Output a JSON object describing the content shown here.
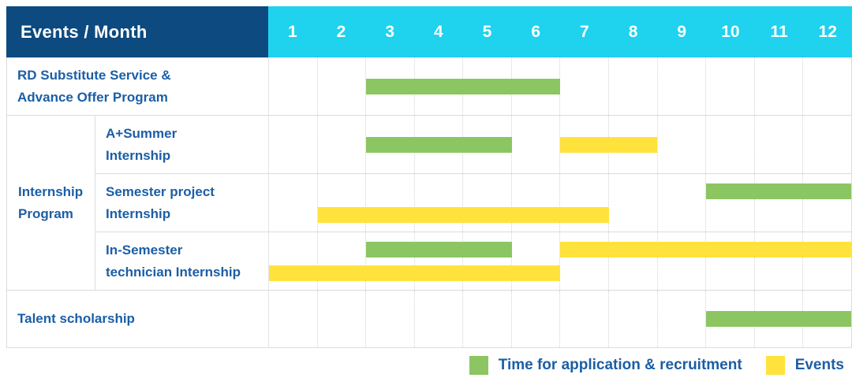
{
  "header": {
    "title": "Events / Month",
    "months": [
      "1",
      "2",
      "3",
      "4",
      "5",
      "6",
      "7",
      "8",
      "9",
      "10",
      "11",
      "12"
    ]
  },
  "group": {
    "label": "Internship Program",
    "label_lines": [
      "Internship",
      "Program"
    ]
  },
  "rows": [
    {
      "id": "rd-substitute-advance-offer",
      "label_lines": [
        "RD Substitute Service &",
        "Advance Offer Program"
      ],
      "group": null,
      "lines": 1,
      "bars": [
        {
          "series": "application",
          "start": 3,
          "end": 6,
          "line": 0
        }
      ]
    },
    {
      "id": "a-plus-summer-internship",
      "label_lines": [
        "A+Summer",
        "Internship"
      ],
      "group": "Internship Program",
      "lines": 1,
      "bars": [
        {
          "series": "application",
          "start": 3,
          "end": 5,
          "line": 0
        },
        {
          "series": "events",
          "start": 7,
          "end": 8,
          "line": 0
        }
      ]
    },
    {
      "id": "semester-project-internship",
      "label_lines": [
        "Semester project",
        "Internship"
      ],
      "group": "Internship Program",
      "lines": 2,
      "bars": [
        {
          "series": "application",
          "start": 10,
          "end": 12,
          "line": 0
        },
        {
          "series": "events",
          "start": 2,
          "end": 7,
          "line": 1
        }
      ]
    },
    {
      "id": "in-semester-technician-internship",
      "label_lines": [
        "In-Semester",
        "technician Internship"
      ],
      "group": "Internship Program",
      "lines": 2,
      "bars": [
        {
          "series": "application",
          "start": 3,
          "end": 5,
          "line": 0
        },
        {
          "series": "events",
          "start": 7,
          "end": 12,
          "line": 0
        },
        {
          "series": "events",
          "start": 1,
          "end": 6,
          "line": 1
        }
      ]
    },
    {
      "id": "talent-scholarship",
      "label_lines": [
        "Talent scholarship"
      ],
      "group": null,
      "lines": 1,
      "bars": [
        {
          "series": "application",
          "start": 10,
          "end": 12,
          "line": 0
        }
      ]
    }
  ],
  "legend": [
    {
      "series": "application",
      "label": "Time for application & recruitment"
    },
    {
      "series": "events",
      "label": "Events"
    }
  ],
  "colors": {
    "header_navy": "#0d4a7f",
    "header_cyan": "#1fd2ee",
    "application_green": "#8cc662",
    "events_yellow": "#ffe33c",
    "label_blue": "#1b5ea6",
    "grid_line": "#dcdcdc"
  },
  "chart_data": {
    "type": "gantt",
    "title": "Events / Month",
    "x": {
      "label": "Month",
      "ticks": [
        "1",
        "2",
        "3",
        "4",
        "5",
        "6",
        "7",
        "8",
        "9",
        "10",
        "11",
        "12"
      ],
      "range": [
        1,
        12
      ],
      "grid": "dotted vertical month lines"
    },
    "legend_position": "bottom-right",
    "series": [
      {
        "name": "Time for application & recruitment",
        "color": "#8cc662"
      },
      {
        "name": "Events",
        "color": "#ffe33c"
      }
    ],
    "rows": [
      {
        "event": "RD Substitute Service & Advance Offer Program",
        "group": null,
        "bars": [
          {
            "series": "Time for application & recruitment",
            "start_month": 3,
            "end_month": 6
          }
        ]
      },
      {
        "event": "A+Summer Internship",
        "group": "Internship Program",
        "bars": [
          {
            "series": "Time for application & recruitment",
            "start_month": 3,
            "end_month": 5
          },
          {
            "series": "Events",
            "start_month": 7,
            "end_month": 8
          }
        ]
      },
      {
        "event": "Semester project Internship",
        "group": "Internship Program",
        "bars": [
          {
            "series": "Time for application & recruitment",
            "start_month": 10,
            "end_month": 12
          },
          {
            "series": "Events",
            "start_month": 2,
            "end_month": 7
          }
        ]
      },
      {
        "event": "In-Semester technician Internship",
        "group": "Internship Program",
        "bars": [
          {
            "series": "Time for application & recruitment",
            "start_month": 3,
            "end_month": 5
          },
          {
            "series": "Events",
            "start_month": 7,
            "end_month": 12
          },
          {
            "series": "Events",
            "start_month": 1,
            "end_month": 6
          }
        ]
      },
      {
        "event": "Talent scholarship",
        "group": null,
        "bars": [
          {
            "series": "Time for application & recruitment",
            "start_month": 10,
            "end_month": 12
          }
        ]
      }
    ]
  }
}
